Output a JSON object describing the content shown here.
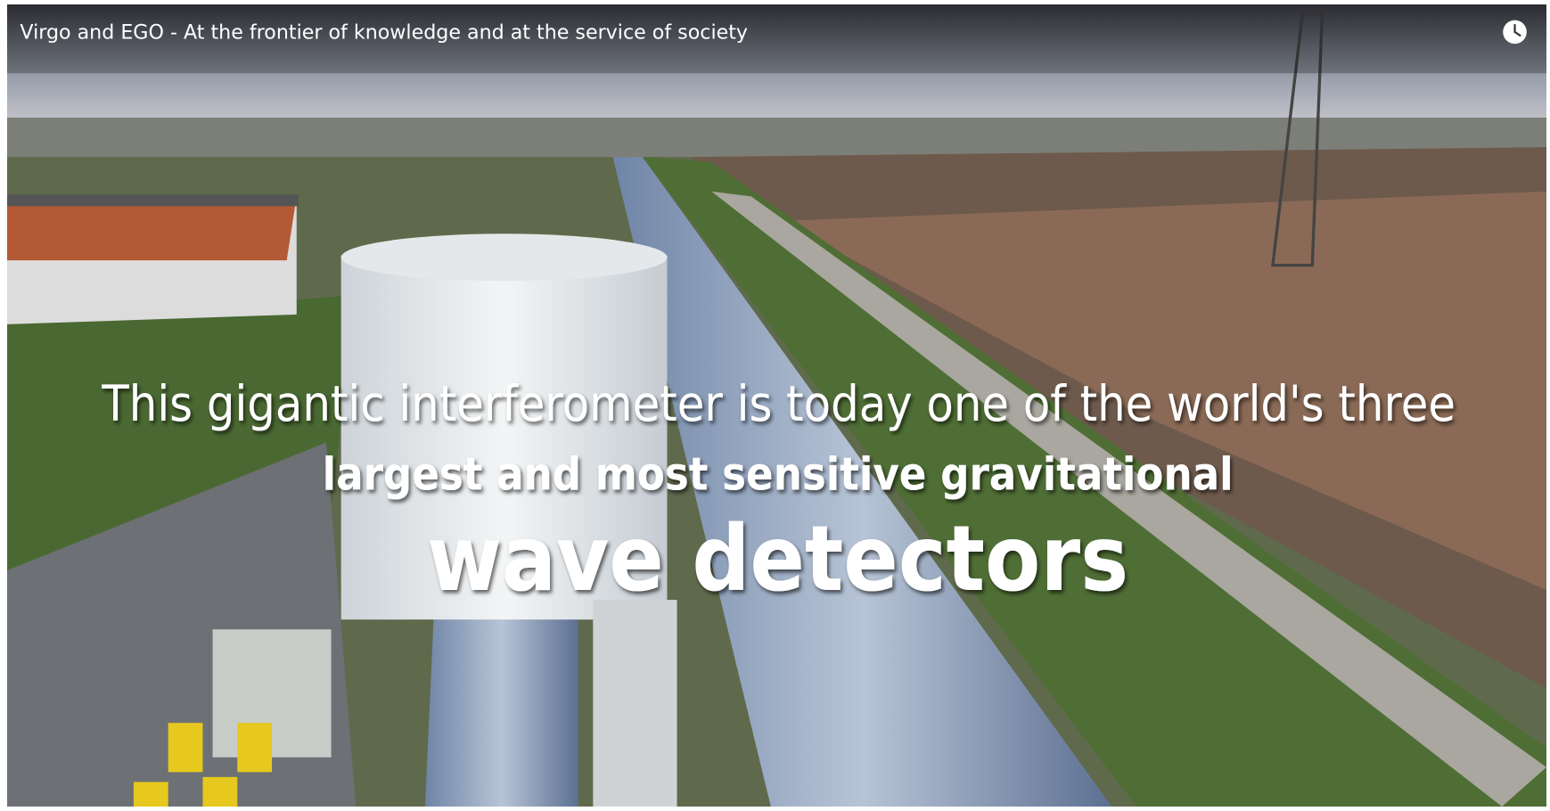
{
  "video": {
    "title": "Virgo and EGO - At the frontier of knowledge and at the service of society",
    "caption": [
      "This gigantic interferometer is today one of the world's three",
      "largest and most sensitive gravitational",
      "wave detectors"
    ]
  }
}
